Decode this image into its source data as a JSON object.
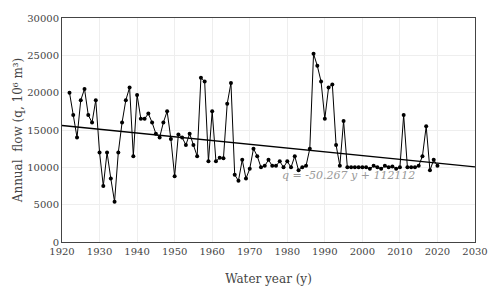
{
  "chart_data": {
    "type": "line",
    "x_label": "Water year (y)",
    "y_label": "Annual  flow (q, 10⁶ m³)",
    "series": [
      {
        "type": "line",
        "color": "black",
        "marker": "circle",
        "line_style": "solid",
        "x": [
          1922,
          1923,
          1924,
          1925,
          1926,
          1927,
          1928,
          1929,
          1930,
          1931,
          1932,
          1933,
          1934,
          1935,
          1936,
          1937,
          1938,
          1939,
          1940,
          1941,
          1942,
          1943,
          1944,
          1945,
          1946,
          1947,
          1948,
          1949,
          1950,
          1951,
          1952,
          1953,
          1954,
          1955,
          1956,
          1957,
          1958,
          1959,
          1960,
          1961,
          1962,
          1963,
          1964,
          1965,
          1966,
          1967,
          1968,
          1969,
          1970,
          1971,
          1972,
          1973,
          1974,
          1975,
          1976,
          1977,
          1978,
          1979,
          1980,
          1981,
          1982,
          1983,
          1984,
          1985,
          1986,
          1987,
          1988,
          1989,
          1990,
          1991,
          1992,
          1993,
          1994,
          1995,
          1996,
          1997,
          1998,
          1999,
          2000,
          2001,
          2002,
          2003,
          2004,
          2005,
          2006,
          2007,
          2008,
          2009,
          2010,
          2011,
          2012,
          2013,
          2014,
          2015,
          2016,
          2017,
          2018,
          2019,
          2020
        ],
        "values": [
          20000,
          17000,
          14000,
          19000,
          20500,
          17000,
          16000,
          19000,
          12000,
          7500,
          12000,
          8500,
          5400,
          12000,
          16000,
          19000,
          20700,
          11500,
          19700,
          16500,
          16500,
          17200,
          16000,
          14500,
          14000,
          16000,
          17500,
          13800,
          8800,
          14400,
          14000,
          13000,
          14500,
          13000,
          11500,
          22000,
          21500,
          10800,
          17500,
          10800,
          11300,
          11200,
          18500,
          21300,
          9000,
          8200,
          11000,
          8500,
          9800,
          12500,
          11500,
          10000,
          10200,
          11000,
          10200,
          10200,
          10800,
          10000,
          10800,
          10000,
          11500,
          9600,
          10000,
          10200,
          12500,
          25200,
          23600,
          21500,
          16500,
          20700,
          21100,
          13000,
          10200,
          16200,
          10000,
          10000,
          10000,
          10000,
          10000,
          10000,
          9800,
          10200,
          10000,
          9800,
          10200,
          10000,
          10100,
          9800,
          10000,
          17000,
          10000,
          10000,
          10000,
          10200,
          11500,
          15500,
          9600,
          11000,
          10200
        ]
      },
      {
        "type": "line",
        "color": "black",
        "marker": "none",
        "line_style": "solid",
        "x": [
          1920,
          2030
        ],
        "values": [
          15599.36,
          10069.99
        ]
      }
    ],
    "annotations": [
      {
        "text": "q = -50.267 y + 112112",
        "x": 1978,
        "y": 7800,
        "color": "#999999"
      }
    ],
    "xlim": [
      1920,
      2030
    ],
    "xticks": [
      1920,
      1930,
      1940,
      1950,
      1960,
      1970,
      1980,
      1990,
      2000,
      2010,
      2020,
      2030
    ],
    "ylim": [
      0,
      30000
    ],
    "yticks": [
      0,
      5000,
      10000,
      15000,
      20000,
      25000,
      30000
    ],
    "grid": true
  }
}
